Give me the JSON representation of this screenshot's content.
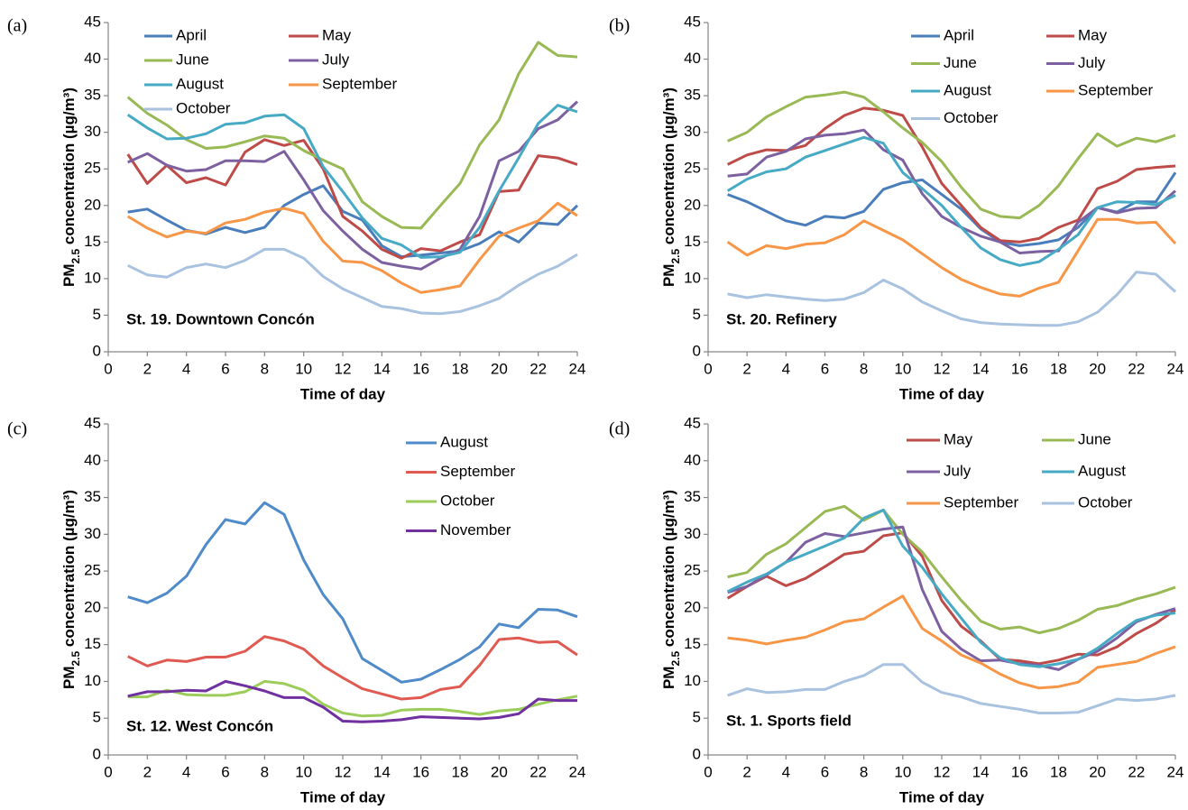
{
  "chart_data": [
    {
      "type": "line",
      "panel_label": "(a)",
      "annotation": "St. 19. Downtown Concón",
      "xlabel": "Time of day",
      "ylabel": {
        "main": "PM",
        "sub": "2.5",
        "rest": " concentration (µg/m³)"
      },
      "x": [
        1,
        2,
        3,
        4,
        5,
        6,
        7,
        8,
        9,
        10,
        11,
        12,
        13,
        14,
        15,
        16,
        17,
        18,
        19,
        20,
        21,
        22,
        23,
        24
      ],
      "xlim": [
        0,
        24
      ],
      "xticks": [
        0,
        2,
        4,
        6,
        8,
        10,
        12,
        14,
        16,
        18,
        20,
        22,
        24
      ],
      "ylim": [
        0,
        45
      ],
      "yticks": [
        0,
        5,
        10,
        15,
        20,
        25,
        30,
        35,
        40,
        45
      ],
      "series": [
        {
          "name": "April",
          "color": "#4a7ebb",
          "values": [
            19.1,
            19.5,
            18,
            16.6,
            16.1,
            17,
            16.3,
            17,
            20,
            21.5,
            22.7,
            19.2,
            18,
            14.5,
            13,
            13.2,
            13.5,
            13.8,
            14.8,
            16.4,
            15,
            17.6,
            17.4,
            20
          ]
        },
        {
          "name": "May",
          "color": "#be4b48",
          "values": [
            27,
            23,
            25.5,
            23.1,
            23.8,
            22.8,
            27.3,
            29,
            28.2,
            28.9,
            25,
            18.5,
            16.5,
            14,
            12.8,
            14.1,
            13.8,
            15,
            16,
            21.9,
            22.1,
            26.8,
            26.5,
            25.6
          ]
        },
        {
          "name": "June",
          "color": "#98b954",
          "values": [
            34.8,
            32.6,
            31,
            29,
            27.8,
            28,
            28.7,
            29.5,
            29.2,
            27.5,
            26.2,
            25,
            20.5,
            18.5,
            17,
            16.9,
            20,
            23,
            28.3,
            31.7,
            38,
            42.3,
            40.5,
            40.3
          ]
        },
        {
          "name": "July",
          "color": "#7d60a0",
          "values": [
            25.9,
            27.1,
            25.5,
            24.7,
            24.9,
            26.1,
            26.1,
            26,
            27.4,
            23.5,
            19.3,
            16.5,
            14,
            12.2,
            11.7,
            11.3,
            12.8,
            14,
            18.5,
            26.1,
            27.4,
            30.5,
            31.7,
            34.2
          ]
        },
        {
          "name": "August",
          "color": "#46aac5",
          "values": [
            32.4,
            30.6,
            29.1,
            29.2,
            29.8,
            31.1,
            31.3,
            32.2,
            32.4,
            30.5,
            25.3,
            21.9,
            18.3,
            15.5,
            14.6,
            12.9,
            13,
            13.6,
            17,
            22,
            26.5,
            31.2,
            33.7,
            32.8
          ]
        },
        {
          "name": "September",
          "color": "#f79646",
          "values": [
            18.5,
            16.9,
            15.7,
            16.5,
            16.2,
            17.6,
            18.1,
            19.1,
            19.6,
            18.9,
            15.1,
            12.4,
            12.2,
            11.1,
            9.4,
            8.1,
            8.5,
            9,
            12.6,
            15.8,
            16.9,
            17.9,
            20.3,
            18.6
          ]
        },
        {
          "name": "October",
          "color": "#a8c2e0",
          "values": [
            11.8,
            10.5,
            10.2,
            11.5,
            12,
            11.5,
            12.5,
            14,
            14,
            12.8,
            10.3,
            8.6,
            7.4,
            6.2,
            5.9,
            5.3,
            5.2,
            5.5,
            6.3,
            7.3,
            9.1,
            10.6,
            11.7,
            13.3
          ]
        }
      ]
    },
    {
      "type": "line",
      "panel_label": "(b)",
      "annotation": "St. 20. Refinery",
      "xlabel": "Time of day",
      "ylabel": {
        "main": "PM",
        "sub": "2.5",
        "rest": " concentration (µg/m³)"
      },
      "x": [
        1,
        2,
        3,
        4,
        5,
        6,
        7,
        8,
        9,
        10,
        11,
        12,
        13,
        14,
        15,
        16,
        17,
        18,
        19,
        20,
        21,
        22,
        23,
        24
      ],
      "xlim": [
        0,
        24
      ],
      "xticks": [
        0,
        2,
        4,
        6,
        8,
        10,
        12,
        14,
        16,
        18,
        20,
        22,
        24
      ],
      "ylim": [
        0,
        45
      ],
      "yticks": [
        0,
        5,
        10,
        15,
        20,
        25,
        30,
        35,
        40,
        45
      ],
      "series": [
        {
          "name": "April",
          "color": "#4a7ebb",
          "values": [
            21.5,
            20.5,
            19.2,
            17.9,
            17.3,
            18.5,
            18.3,
            19.2,
            22.2,
            23.1,
            23.5,
            21.5,
            19.5,
            16.8,
            15,
            14.5,
            14.8,
            15.3,
            17,
            19.7,
            19.1,
            20.5,
            20.5,
            24.5
          ]
        },
        {
          "name": "May",
          "color": "#be4b48",
          "values": [
            25.6,
            26.9,
            27.6,
            27.5,
            28.2,
            30.5,
            32.3,
            33.3,
            33,
            32.3,
            28,
            23,
            20,
            17,
            15.2,
            15,
            15.5,
            17,
            18,
            22.3,
            23.3,
            24.9,
            25.2,
            25.4
          ]
        },
        {
          "name": "June",
          "color": "#98b954",
          "values": [
            28.8,
            30,
            32.1,
            33.5,
            34.8,
            35.1,
            35.5,
            34.8,
            32.8,
            30.6,
            28.6,
            26,
            22.5,
            19.5,
            18.5,
            18.3,
            20,
            22.7,
            26.4,
            29.8,
            28.1,
            29.2,
            28.7,
            29.6
          ]
        },
        {
          "name": "July",
          "color": "#7d60a0",
          "values": [
            24,
            24.3,
            26.6,
            27.4,
            29.1,
            29.6,
            29.8,
            30.3,
            27.6,
            26.2,
            21.6,
            18.5,
            17,
            15.8,
            15,
            13.5,
            13.7,
            13.8,
            17.7,
            19.7,
            19,
            19.6,
            19.7,
            22
          ]
        },
        {
          "name": "August",
          "color": "#46aac5",
          "values": [
            22,
            23.6,
            24.6,
            25,
            26.6,
            27.5,
            28.4,
            29.3,
            28.5,
            24.5,
            22.3,
            20,
            17,
            14.2,
            12.6,
            11.8,
            12.3,
            14,
            16,
            19.7,
            20.5,
            20.4,
            20.1,
            21.4
          ]
        },
        {
          "name": "September",
          "color": "#f79646",
          "values": [
            15,
            13.2,
            14.5,
            14.1,
            14.7,
            14.9,
            16,
            17.9,
            16.6,
            15.3,
            13.4,
            11.5,
            9.9,
            8.8,
            7.9,
            7.6,
            8.7,
            9.5,
            13.8,
            18.1,
            18.1,
            17.6,
            17.7,
            14.8
          ]
        },
        {
          "name": "October",
          "color": "#a8c2e0",
          "values": [
            7.9,
            7.4,
            7.8,
            7.5,
            7.2,
            7,
            7.2,
            8.1,
            9.8,
            8.6,
            6.8,
            5.6,
            4.5,
            4,
            3.8,
            3.7,
            3.6,
            3.6,
            4.1,
            5.4,
            7.8,
            10.9,
            10.6,
            8.2
          ]
        }
      ]
    },
    {
      "type": "line",
      "panel_label": "(c)",
      "annotation": "St. 12. West Concón",
      "xlabel": "Time of day",
      "ylabel": {
        "main": "PM",
        "sub": "2.5",
        "rest": " concentration (µg/m³)"
      },
      "x": [
        1,
        2,
        3,
        4,
        5,
        6,
        7,
        8,
        9,
        10,
        11,
        12,
        13,
        14,
        15,
        16,
        17,
        18,
        19,
        20,
        21,
        22,
        23,
        24
      ],
      "xlim": [
        0,
        24
      ],
      "xticks": [
        0,
        2,
        4,
        6,
        8,
        10,
        12,
        14,
        16,
        18,
        20,
        22,
        24
      ],
      "ylim": [
        0,
        45
      ],
      "yticks": [
        0,
        5,
        10,
        15,
        20,
        25,
        30,
        35,
        40,
        45
      ],
      "series": [
        {
          "name": "August",
          "color": "#4f8ac9",
          "values": [
            21.5,
            20.7,
            22,
            24.3,
            28.6,
            32,
            31.4,
            34.3,
            32.7,
            26.5,
            21.8,
            18.5,
            13.1,
            11.5,
            9.9,
            10.3,
            11.6,
            13,
            14.7,
            17.8,
            17.3,
            19.8,
            19.7,
            18.8
          ]
        },
        {
          "name": "September",
          "color": "#e05a52",
          "values": [
            13.4,
            12.1,
            12.9,
            12.7,
            13.3,
            13.3,
            14.1,
            16.1,
            15.5,
            14.4,
            12.1,
            10.5,
            9,
            8.3,
            7.6,
            7.8,
            8.9,
            9.3,
            12.2,
            15.7,
            15.9,
            15.3,
            15.4,
            13.6
          ]
        },
        {
          "name": "October",
          "color": "#9ccc5a",
          "values": [
            7.9,
            7.9,
            8.8,
            8.2,
            8.1,
            8.1,
            8.6,
            10,
            9.7,
            8.8,
            6.9,
            5.7,
            5.3,
            5.4,
            6.1,
            6.2,
            6.2,
            5.9,
            5.5,
            6,
            6.2,
            6.9,
            7.5,
            8
          ]
        },
        {
          "name": "November",
          "color": "#7030a0",
          "values": [
            8,
            8.6,
            8.6,
            8.8,
            8.7,
            10,
            9.4,
            8.7,
            7.8,
            7.8,
            6.5,
            4.6,
            4.5,
            4.6,
            4.8,
            5.2,
            5.1,
            5,
            4.9,
            5.1,
            5.6,
            7.6,
            7.4,
            7.4
          ]
        }
      ]
    },
    {
      "type": "line",
      "panel_label": "(d)",
      "annotation": "St. 1. Sports field",
      "xlabel": "Time of day",
      "ylabel": {
        "main": "PM",
        "sub": "2.5",
        "rest": " concentration (µg/m³)"
      },
      "x": [
        1,
        2,
        3,
        4,
        5,
        6,
        7,
        8,
        9,
        10,
        11,
        12,
        13,
        14,
        15,
        16,
        17,
        18,
        19,
        20,
        21,
        22,
        23,
        24
      ],
      "xlim": [
        0,
        24
      ],
      "xticks": [
        0,
        2,
        4,
        6,
        8,
        10,
        12,
        14,
        16,
        18,
        20,
        22,
        24
      ],
      "ylim": [
        0,
        45
      ],
      "yticks": [
        0,
        5,
        10,
        15,
        20,
        25,
        30,
        35,
        40,
        45
      ],
      "series": [
        {
          "name": "May",
          "color": "#be4b48",
          "values": [
            21.3,
            22.9,
            24.3,
            23,
            24,
            25.6,
            27.3,
            27.7,
            29.8,
            30.2,
            27,
            21,
            17.5,
            15.5,
            13,
            12.8,
            12.4,
            12.9,
            13.7,
            13.6,
            14.7,
            16.5,
            17.9,
            19.7
          ]
        },
        {
          "name": "June",
          "color": "#98b954",
          "values": [
            24.2,
            24.8,
            27.3,
            28.7,
            30.9,
            33.1,
            33.8,
            31.9,
            33.3,
            30,
            27.6,
            24.2,
            21,
            18.2,
            17.1,
            17.4,
            16.6,
            17.2,
            18.3,
            19.8,
            20.3,
            21.2,
            21.9,
            22.8
          ]
        },
        {
          "name": "July",
          "color": "#7d60a0",
          "values": [
            22.1,
            22.9,
            24.5,
            26.2,
            28.9,
            30.1,
            29.7,
            30.2,
            30.7,
            31,
            22.5,
            16.8,
            14.4,
            12.8,
            12.9,
            12.4,
            12.2,
            11.6,
            13,
            14.1,
            15.9,
            18.1,
            19.1,
            19.9
          ]
        },
        {
          "name": "August",
          "color": "#46aac5",
          "values": [
            22.2,
            23.5,
            24.6,
            26.2,
            27.3,
            28.4,
            29.5,
            32.2,
            33.3,
            28.4,
            25.5,
            21.9,
            18.6,
            15.3,
            13.2,
            12.3,
            12,
            12.4,
            13,
            14.5,
            16.5,
            18.3,
            19,
            19.3
          ]
        },
        {
          "name": "September",
          "color": "#f79646",
          "values": [
            15.9,
            15.6,
            15.1,
            15.6,
            16,
            17,
            18.1,
            18.5,
            20.1,
            21.6,
            17.2,
            15.5,
            13.6,
            12.5,
            11,
            9.8,
            9.1,
            9.3,
            9.9,
            11.9,
            12.3,
            12.7,
            13.8,
            14.7
          ]
        },
        {
          "name": "October",
          "color": "#a8c2e0",
          "values": [
            8.1,
            9,
            8.5,
            8.6,
            8.9,
            8.9,
            10,
            10.8,
            12.3,
            12.3,
            9.9,
            8.5,
            7.9,
            7,
            6.6,
            6.2,
            5.7,
            5.7,
            5.8,
            6.7,
            7.6,
            7.4,
            7.6,
            8.1
          ]
        }
      ]
    }
  ]
}
